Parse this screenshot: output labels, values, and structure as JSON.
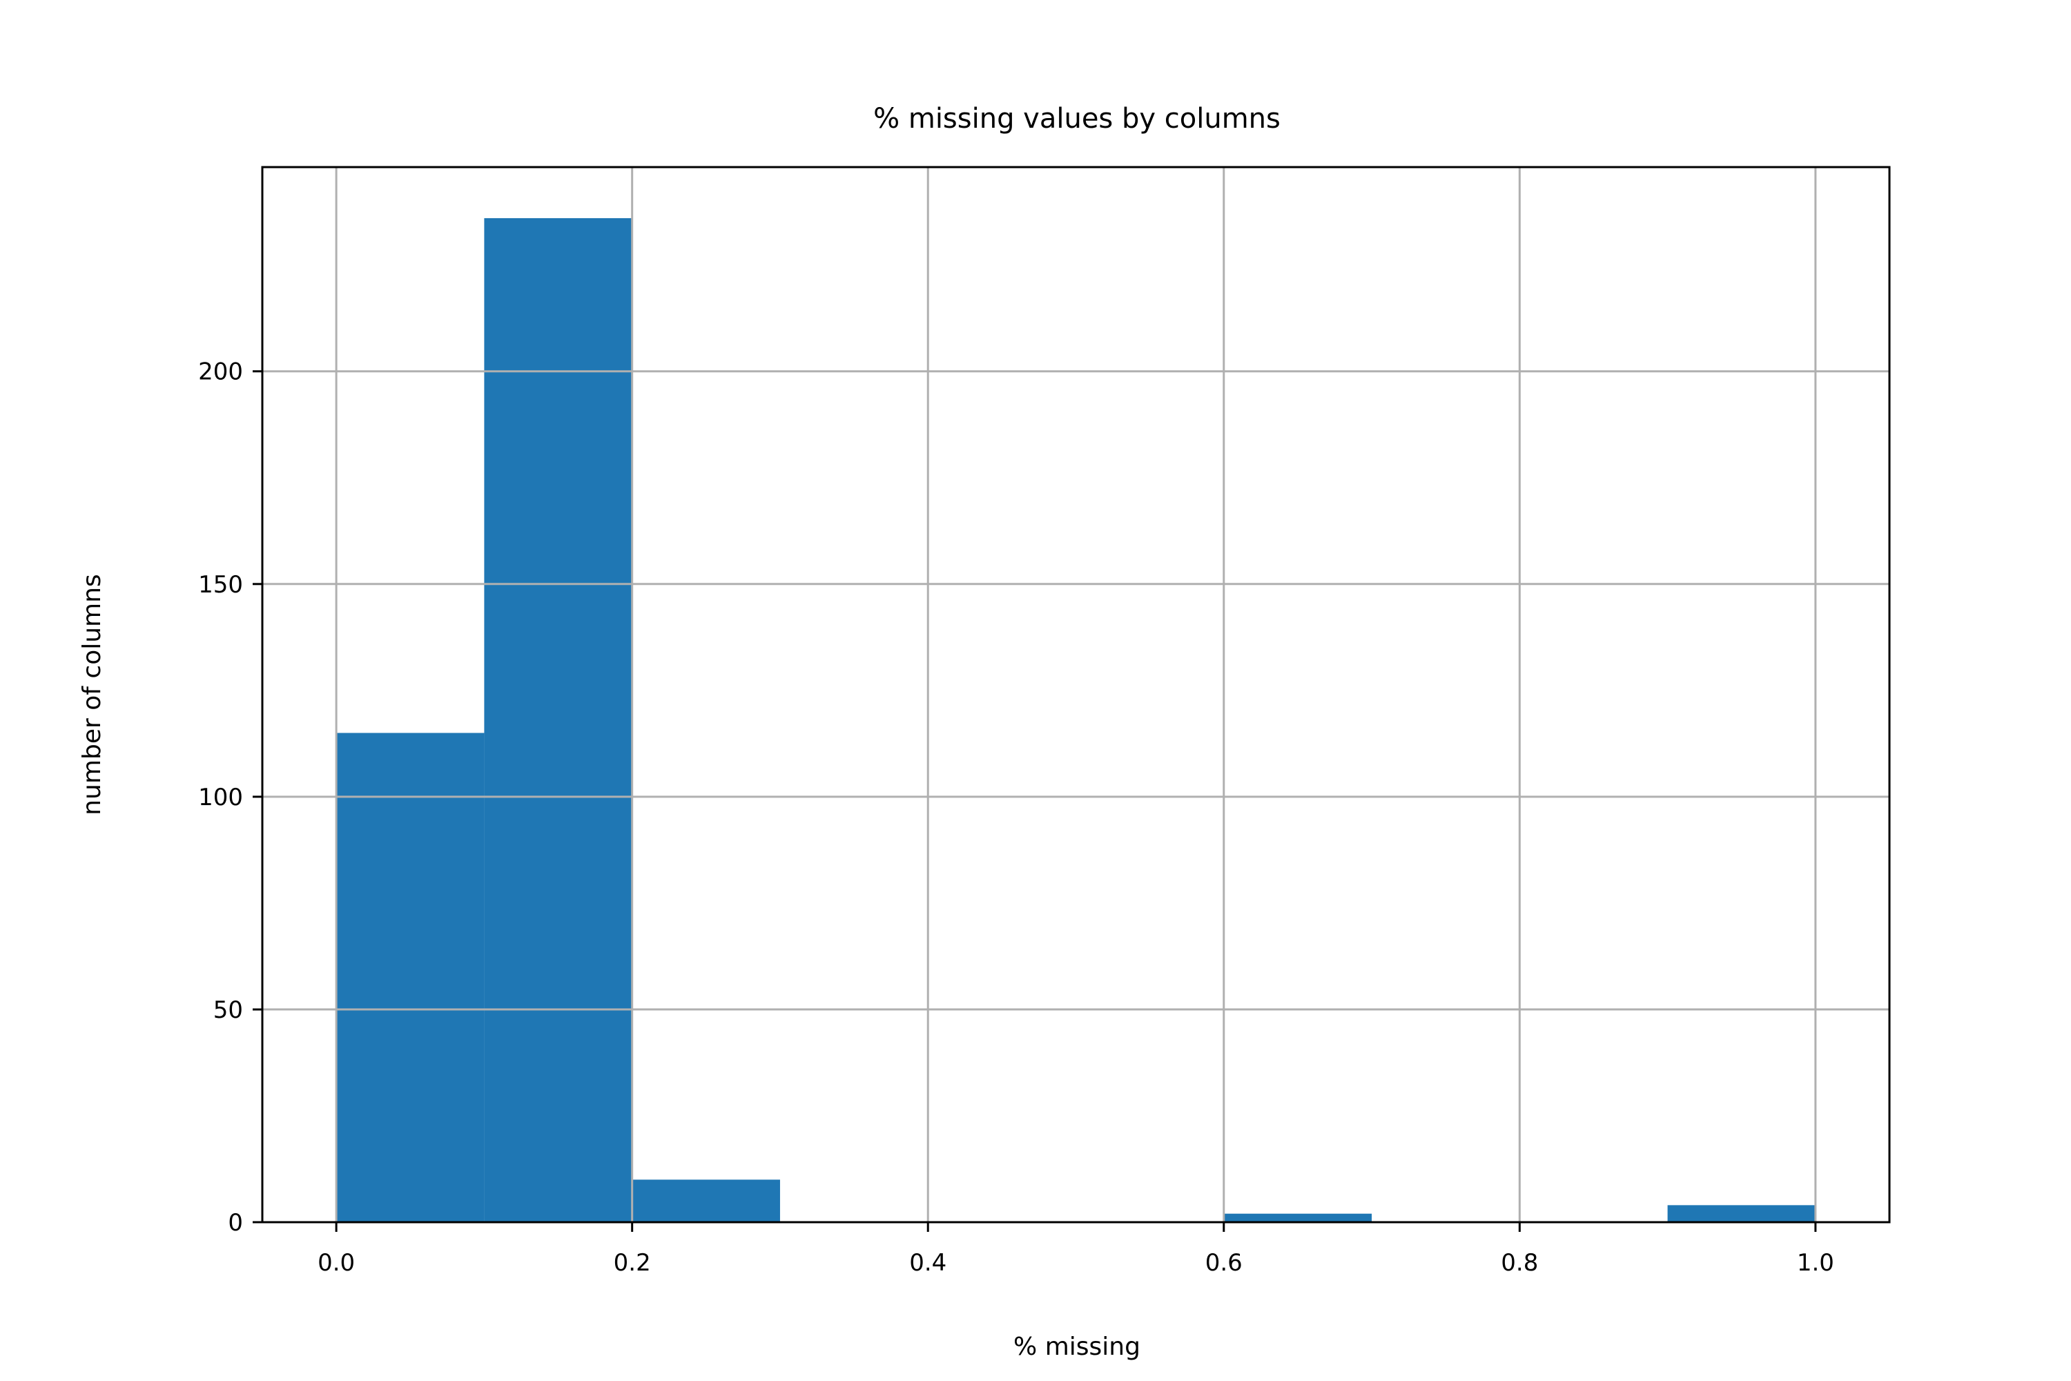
{
  "chart_data": {
    "type": "bar",
    "title": "% missing values by columns",
    "xlabel": "% missing",
    "ylabel": "number of columns",
    "bin_edges": [
      0.0,
      0.1,
      0.2,
      0.3,
      0.4,
      0.5,
      0.6,
      0.7,
      0.8,
      0.9,
      1.0
    ],
    "values": [
      115,
      236,
      10,
      0,
      0,
      0,
      2,
      0,
      0,
      4
    ],
    "xlim": [
      -0.05,
      1.05
    ],
    "ylim": [
      0,
      248
    ],
    "xticks": [
      0.0,
      0.2,
      0.4,
      0.6,
      0.8,
      1.0
    ],
    "xtick_labels": [
      "0.0",
      "0.2",
      "0.4",
      "0.6",
      "0.8",
      "1.0"
    ],
    "yticks": [
      0,
      50,
      100,
      150,
      200
    ],
    "ytick_labels": [
      "0",
      "50",
      "100",
      "150",
      "200"
    ],
    "grid": true,
    "colors": {
      "bar": "#1f77b4",
      "grid": "#b0b0b0",
      "axes": "#000000"
    }
  }
}
